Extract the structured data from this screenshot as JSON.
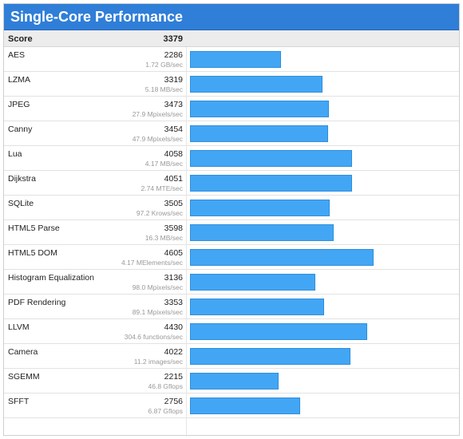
{
  "chart_data": {
    "type": "bar",
    "title": "Single-Core Performance",
    "score_label": "Score",
    "score_value": "3379",
    "xlim": [
      0,
      6600
    ],
    "bar_color": "#43a6f4",
    "header_color": "#2f7ed8",
    "categories": [
      "AES",
      "LZMA",
      "JPEG",
      "Canny",
      "Lua",
      "Dijkstra",
      "SQLite",
      "HTML5 Parse",
      "HTML5 DOM",
      "Histogram Equalization",
      "PDF Rendering",
      "LLVM",
      "Camera",
      "SGEMM",
      "SFFT"
    ],
    "values": [
      2286,
      3319,
      3473,
      3454,
      4058,
      4051,
      3505,
      3598,
      4605,
      3136,
      3353,
      4430,
      4022,
      2215,
      2756
    ],
    "throughput": [
      "1.72 GB/sec",
      "5.18 MB/sec",
      "27.9 Mpixels/sec",
      "47.9 Mpixels/sec",
      "4.17 MB/sec",
      "2.74 MTE/sec",
      "97.2 Krows/sec",
      "16.3 MB/sec",
      "4.17 MElements/sec",
      "98.0 Mpixels/sec",
      "89.1 Mpixels/sec",
      "304.6 functions/sec",
      "11.2 images/sec",
      "46.8 Gflops",
      "6.87 Gflops"
    ]
  }
}
